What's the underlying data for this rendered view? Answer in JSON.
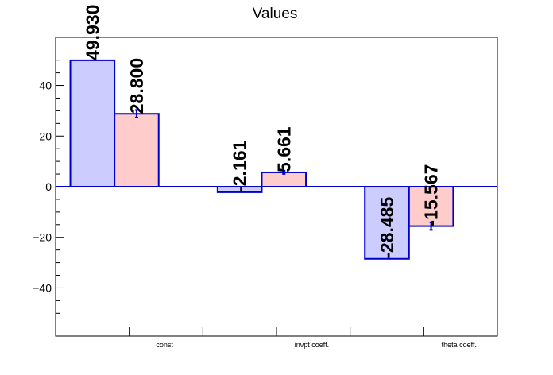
{
  "chart_data": {
    "type": "bar",
    "title": "Values",
    "categories": [
      "const",
      "invpt coeff.",
      "theta coeff."
    ],
    "series": [
      {
        "values": [
          49.93,
          -2.161,
          -28.485
        ],
        "errors": [
          0,
          0,
          0
        ],
        "labels": [
          "49.930",
          "-2.161",
          "-28.485"
        ]
      },
      {
        "values": [
          28.8,
          5.661,
          -15.567
        ],
        "errors": [
          1.5,
          0.6,
          1.5
        ],
        "labels": [
          "28.800",
          "5.661",
          "-15.567"
        ]
      }
    ],
    "ylim": [
      -59,
      59
    ],
    "yticks": [
      -40,
      -20,
      0,
      20,
      40
    ],
    "ytick_labels": [
      "−40",
      "−20",
      "0",
      "20",
      "40"
    ],
    "grid": false,
    "legend": "none",
    "colors": {
      "series_fill": [
        "#ccccff",
        "#ffcccc"
      ],
      "bar_edge": "#0000cc",
      "zero_line": "#0000cc",
      "axis": "#000000"
    }
  }
}
